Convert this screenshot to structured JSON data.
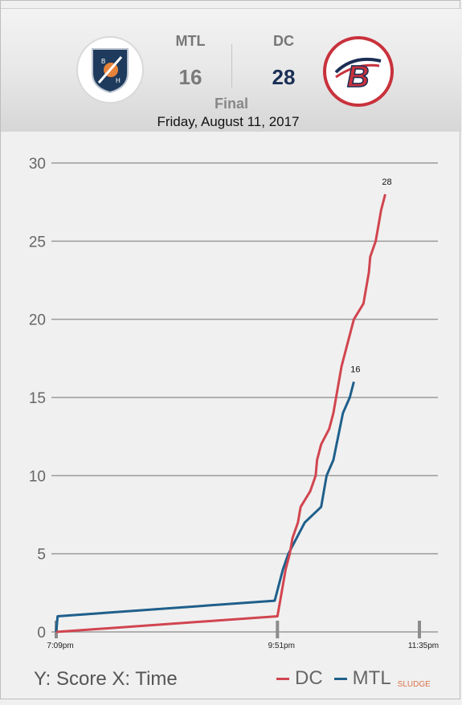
{
  "game": {
    "home": {
      "code": "MTL",
      "score": "16",
      "logo_letters": [
        "B",
        "H"
      ]
    },
    "away": {
      "code": "DC",
      "score": "28",
      "logo_letter": "B"
    },
    "status": "Final",
    "date": "Friday, August 11, 2017"
  },
  "colors": {
    "dc": "#d1454f",
    "mtl": "#1f5f8b",
    "home_score": "#7a7a7a",
    "away_score": "#1b2f55",
    "away_ring": "#c8323c"
  },
  "chart_data": {
    "type": "line",
    "ylim": [
      0,
      30
    ],
    "yticks": [
      0,
      5,
      10,
      15,
      20,
      25,
      30
    ],
    "x_tick_labels": [
      {
        "x": 0,
        "label": "7:09pm"
      },
      {
        "x": 162,
        "label": "9:51pm"
      },
      {
        "x": 266,
        "label": "11:35pm"
      }
    ],
    "x_unit": "minutes after 7:09pm",
    "series": [
      {
        "name": "DC",
        "color": "#d1454f",
        "end_label": "28",
        "points": [
          [
            0,
            0
          ],
          [
            162,
            1
          ],
          [
            164,
            2
          ],
          [
            166,
            3
          ],
          [
            168,
            4
          ],
          [
            171,
            5
          ],
          [
            173,
            6
          ],
          [
            177,
            7
          ],
          [
            179,
            8
          ],
          [
            186,
            9
          ],
          [
            190,
            10
          ],
          [
            191,
            11
          ],
          [
            194,
            12
          ],
          [
            200,
            13
          ],
          [
            203,
            14
          ],
          [
            205,
            15
          ],
          [
            207,
            16
          ],
          [
            209,
            17
          ],
          [
            218,
            20
          ],
          [
            225,
            21
          ],
          [
            227,
            22
          ],
          [
            229,
            23
          ],
          [
            230,
            24
          ],
          [
            234,
            25
          ],
          [
            236,
            26
          ],
          [
            238,
            27
          ],
          [
            241,
            28
          ]
        ]
      },
      {
        "name": "MTL",
        "color": "#1f5f8b",
        "end_label": "16",
        "points": [
          [
            0,
            0
          ],
          [
            1,
            1
          ],
          [
            160,
            2
          ],
          [
            166,
            4
          ],
          [
            170,
            5
          ],
          [
            176,
            6
          ],
          [
            182,
            7
          ],
          [
            194,
            8
          ],
          [
            198,
            10
          ],
          [
            203,
            11
          ],
          [
            210,
            14
          ],
          [
            215,
            15
          ],
          [
            218,
            16
          ]
        ]
      }
    ],
    "axis_caption": "Y: Score X: Time",
    "legend": [
      "DC",
      "MTL"
    ],
    "credit": "SLUDGE",
    "legend_placement": "bottom-right",
    "grid": true
  }
}
